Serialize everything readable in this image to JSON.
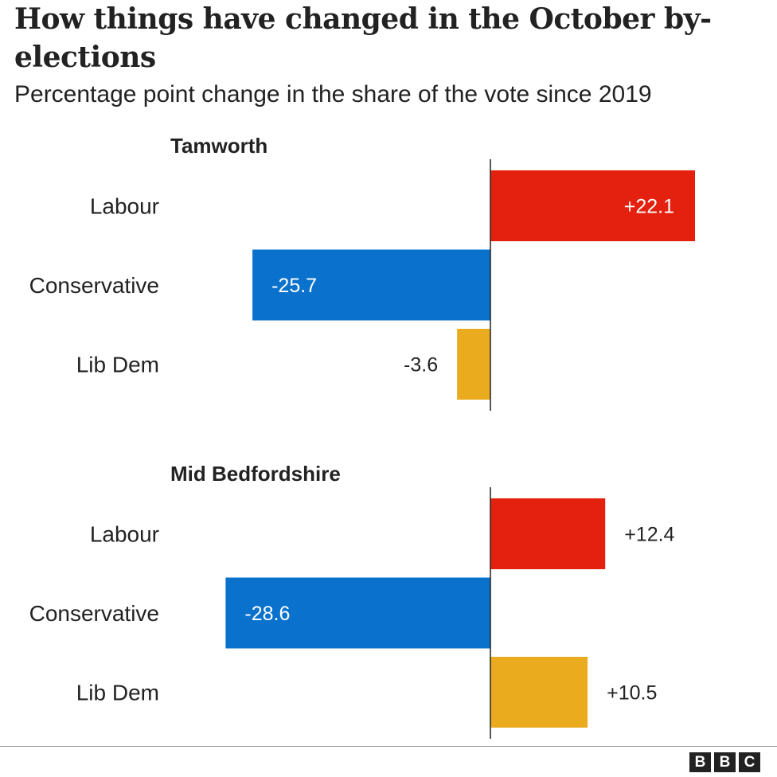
{
  "title": "How things have changed in the October by-elections",
  "subtitle": "Percentage point change in the share of the vote since 2019",
  "logo": [
    "B",
    "B",
    "C"
  ],
  "colors": {
    "Labour": "#e4200f",
    "Conservative": "#0a72cc",
    "Lib Dem": "#ebab1f"
  },
  "chart_data": [
    {
      "type": "bar",
      "title": "Tamworth",
      "categories": [
        "Labour",
        "Conservative",
        "Lib Dem"
      ],
      "values": [
        22.1,
        -25.7,
        -3.6
      ],
      "labels": [
        "+22.1",
        "-25.7",
        "-3.6"
      ]
    },
    {
      "type": "bar",
      "title": "Mid Bedfordshire",
      "categories": [
        "Labour",
        "Conservative",
        "Lib Dem"
      ],
      "values": [
        12.4,
        -28.6,
        10.5
      ],
      "labels": [
        "+12.4",
        "-28.6",
        "+10.5"
      ]
    }
  ]
}
